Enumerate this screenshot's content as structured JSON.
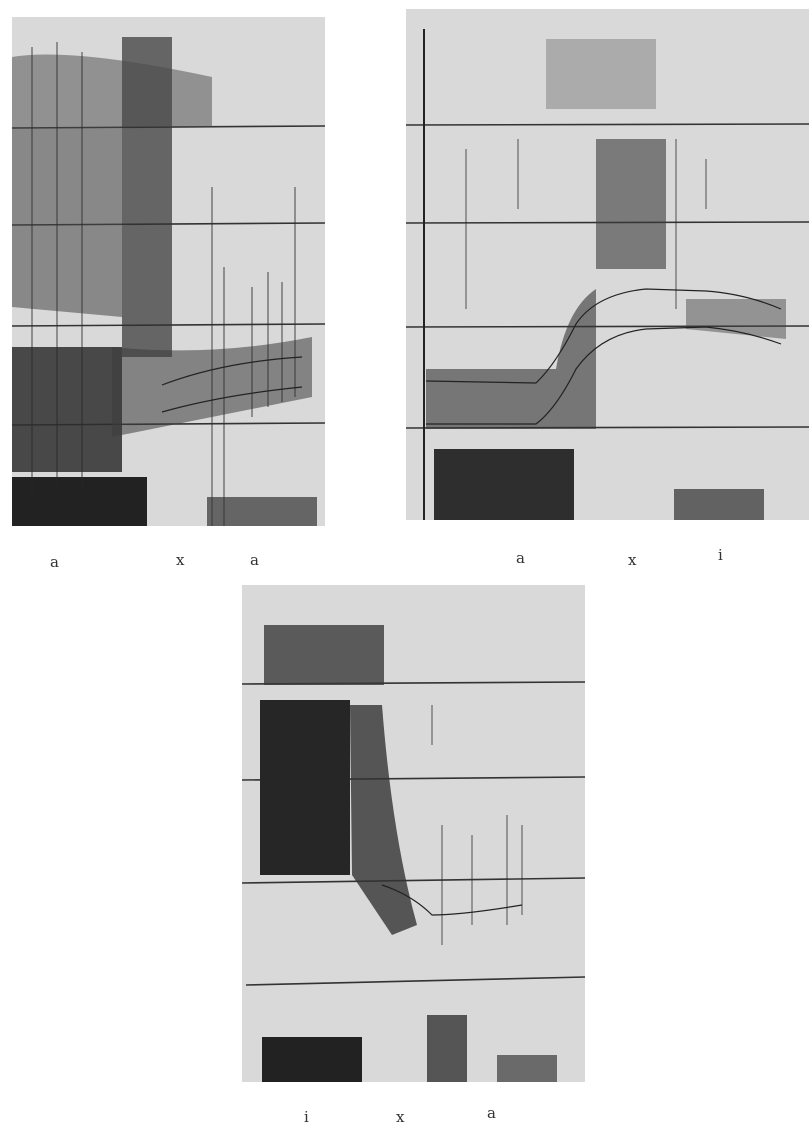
{
  "figures": [
    {
      "labels": [
        "a",
        "x",
        "a"
      ]
    },
    {
      "labels": [
        "a",
        "x",
        "i"
      ]
    },
    {
      "labels": [
        "i",
        "x",
        "a"
      ]
    }
  ],
  "colors": {
    "background": "#ffffff",
    "panel": "#d9d9d9",
    "ink": "#2b2b2b",
    "gridline": "#333333"
  },
  "icons": [
    "spectrogram",
    "formant-trace"
  ]
}
